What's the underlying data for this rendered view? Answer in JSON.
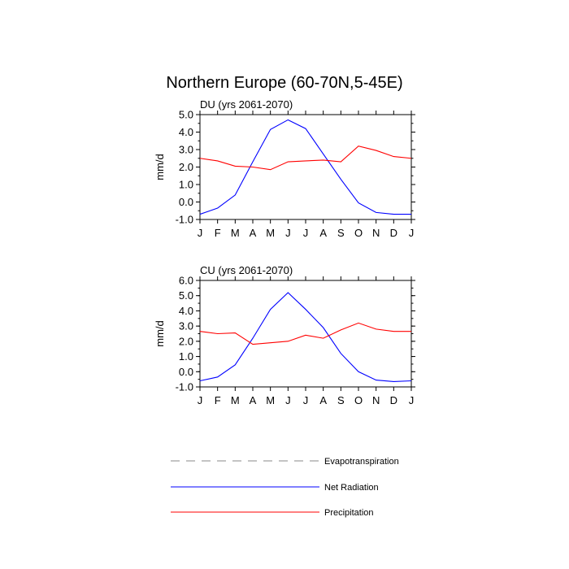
{
  "figure": {
    "title": "Northern Europe (60-70N,5-45E)"
  },
  "chart_data": [
    {
      "type": "line",
      "title": "DU (yrs 2061-2070)",
      "ylabel": "mm/d",
      "xlabel": "",
      "categories": [
        "J",
        "F",
        "M",
        "A",
        "M",
        "J",
        "J",
        "A",
        "S",
        "O",
        "N",
        "D",
        "J"
      ],
      "ylim": [
        -1.0,
        5.0
      ],
      "yticks": [
        -1.0,
        0.0,
        1.0,
        2.0,
        3.0,
        4.0,
        5.0
      ],
      "ytick_labels": [
        "-1.0",
        "0.0",
        "1.0",
        "2.0",
        "3.0",
        "4.0",
        "5.0"
      ],
      "grid": false,
      "series": [
        {
          "name": "Net Radiation",
          "color": "#0000ff",
          "values": [
            -0.7,
            -0.35,
            0.4,
            2.3,
            4.15,
            4.7,
            4.2,
            2.75,
            1.3,
            -0.05,
            -0.6,
            -0.7,
            -0.7
          ]
        },
        {
          "name": "Precipitation",
          "color": "#ff0000",
          "values": [
            2.5,
            2.35,
            2.05,
            2.0,
            1.85,
            2.3,
            2.35,
            2.4,
            2.3,
            3.2,
            2.95,
            2.6,
            2.5
          ]
        }
      ]
    },
    {
      "type": "line",
      "title": "CU (yrs 2061-2070)",
      "ylabel": "mm/d",
      "xlabel": "",
      "categories": [
        "J",
        "F",
        "M",
        "A",
        "M",
        "J",
        "J",
        "A",
        "S",
        "O",
        "N",
        "D",
        "J"
      ],
      "ylim": [
        -1.0,
        6.0
      ],
      "yticks": [
        -1.0,
        0.0,
        1.0,
        2.0,
        3.0,
        4.0,
        5.0,
        6.0
      ],
      "ytick_labels": [
        "-1.0",
        "0.0",
        "1.0",
        "2.0",
        "3.0",
        "4.0",
        "5.0",
        "6.0"
      ],
      "grid": false,
      "series": [
        {
          "name": "Net Radiation",
          "color": "#0000ff",
          "values": [
            -0.6,
            -0.35,
            0.45,
            2.2,
            4.1,
            5.2,
            4.1,
            2.9,
            1.2,
            0.0,
            -0.55,
            -0.65,
            -0.6
          ]
        },
        {
          "name": "Precipitation",
          "color": "#ff0000",
          "values": [
            2.65,
            2.5,
            2.55,
            1.8,
            1.9,
            2.0,
            2.4,
            2.2,
            2.75,
            3.2,
            2.8,
            2.65,
            2.65
          ]
        }
      ]
    }
  ],
  "legend": [
    {
      "label": "Evapotranspiration",
      "color": "#888888",
      "dashed": true
    },
    {
      "label": "Net Radiation",
      "color": "#0000ff",
      "dashed": false
    },
    {
      "label": "Precipitation",
      "color": "#ff0000",
      "dashed": false
    }
  ]
}
